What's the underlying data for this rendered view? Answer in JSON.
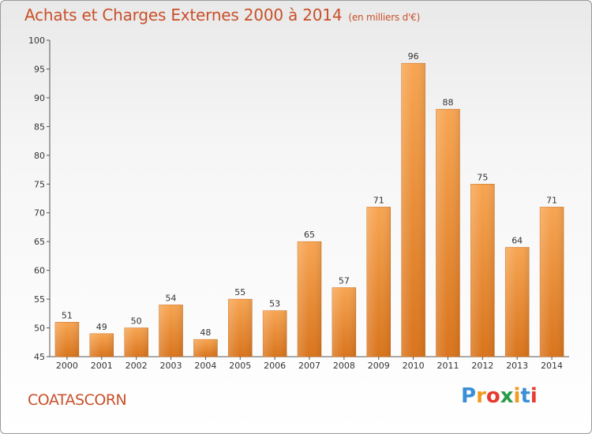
{
  "chart_data": {
    "type": "bar",
    "title": "Achats et Charges Externes 2000 à 2014",
    "subtitle": "(en milliers d'€)",
    "categories": [
      "2000",
      "2001",
      "2002",
      "2003",
      "2004",
      "2005",
      "2006",
      "2007",
      "2008",
      "2009",
      "2010",
      "2011",
      "2012",
      "2013",
      "2014"
    ],
    "values": [
      51,
      49,
      50,
      54,
      48,
      55,
      53,
      65,
      57,
      71,
      96,
      88,
      75,
      64,
      71
    ],
    "ylim": [
      45,
      100
    ],
    "yticks": [
      45,
      50,
      55,
      60,
      65,
      70,
      75,
      80,
      85,
      90,
      95,
      100
    ],
    "grid": false,
    "bar_color": "#f0923a"
  },
  "footer": {
    "place": "COATASCORN",
    "logo_letters": [
      "P",
      "r",
      "o",
      "x",
      "i",
      "t",
      "i"
    ],
    "logo_colors": [
      "#3a8fd6",
      "#f29a1e",
      "#e63b2e",
      "#2b9a48",
      "#f29a1e",
      "#3a8fd6",
      "#e63b2e"
    ]
  }
}
